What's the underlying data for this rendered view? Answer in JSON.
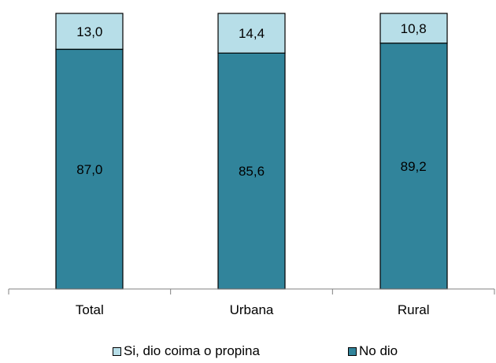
{
  "chart_data": {
    "type": "bar",
    "stacked": true,
    "categories": [
      "Total",
      "Urbana",
      "Rural"
    ],
    "series": [
      {
        "name": "No dio",
        "values": [
          87.0,
          85.6,
          89.2
        ],
        "labels": [
          "87,0",
          "85,6",
          "89,2"
        ],
        "color": "#31849b"
      },
      {
        "name": "Si, dio coima o propina",
        "values": [
          13.0,
          14.4,
          10.8
        ],
        "labels": [
          "13,0",
          "14,4",
          "10,8"
        ],
        "color": "#b7dee8"
      }
    ],
    "ylim": [
      0,
      100
    ],
    "legend_position": "bottom",
    "grid": false
  }
}
